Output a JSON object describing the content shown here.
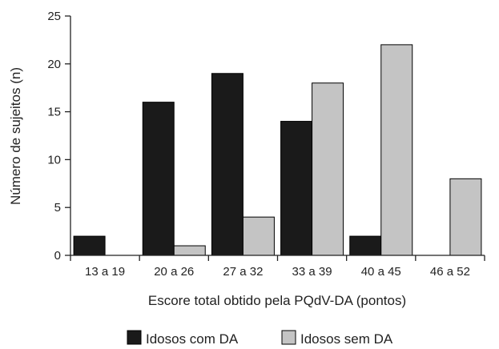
{
  "chart_data": {
    "type": "bar",
    "title": "",
    "xlabel": "Escore total obtido pela PQdV-DA (pontos)",
    "ylabel": "Número de sujeitos (n)",
    "ylim": [
      0,
      25
    ],
    "yticks": [
      "0",
      "5",
      "10",
      "15",
      "20",
      "25"
    ],
    "categories": [
      "13 a 19",
      "20 a 26",
      "27 a 32",
      "33 a 39",
      "40 a 45",
      "46 a 52"
    ],
    "grid": false,
    "legend_position": "bottom",
    "series": [
      {
        "name": "Idosos com DA",
        "values": [
          2,
          16,
          19,
          14,
          2,
          0
        ],
        "color": "#1a1a1a"
      },
      {
        "name": "Idosos sem DA",
        "values": [
          0,
          1,
          4,
          18,
          22,
          8
        ],
        "color": "#c4c4c4"
      }
    ]
  }
}
